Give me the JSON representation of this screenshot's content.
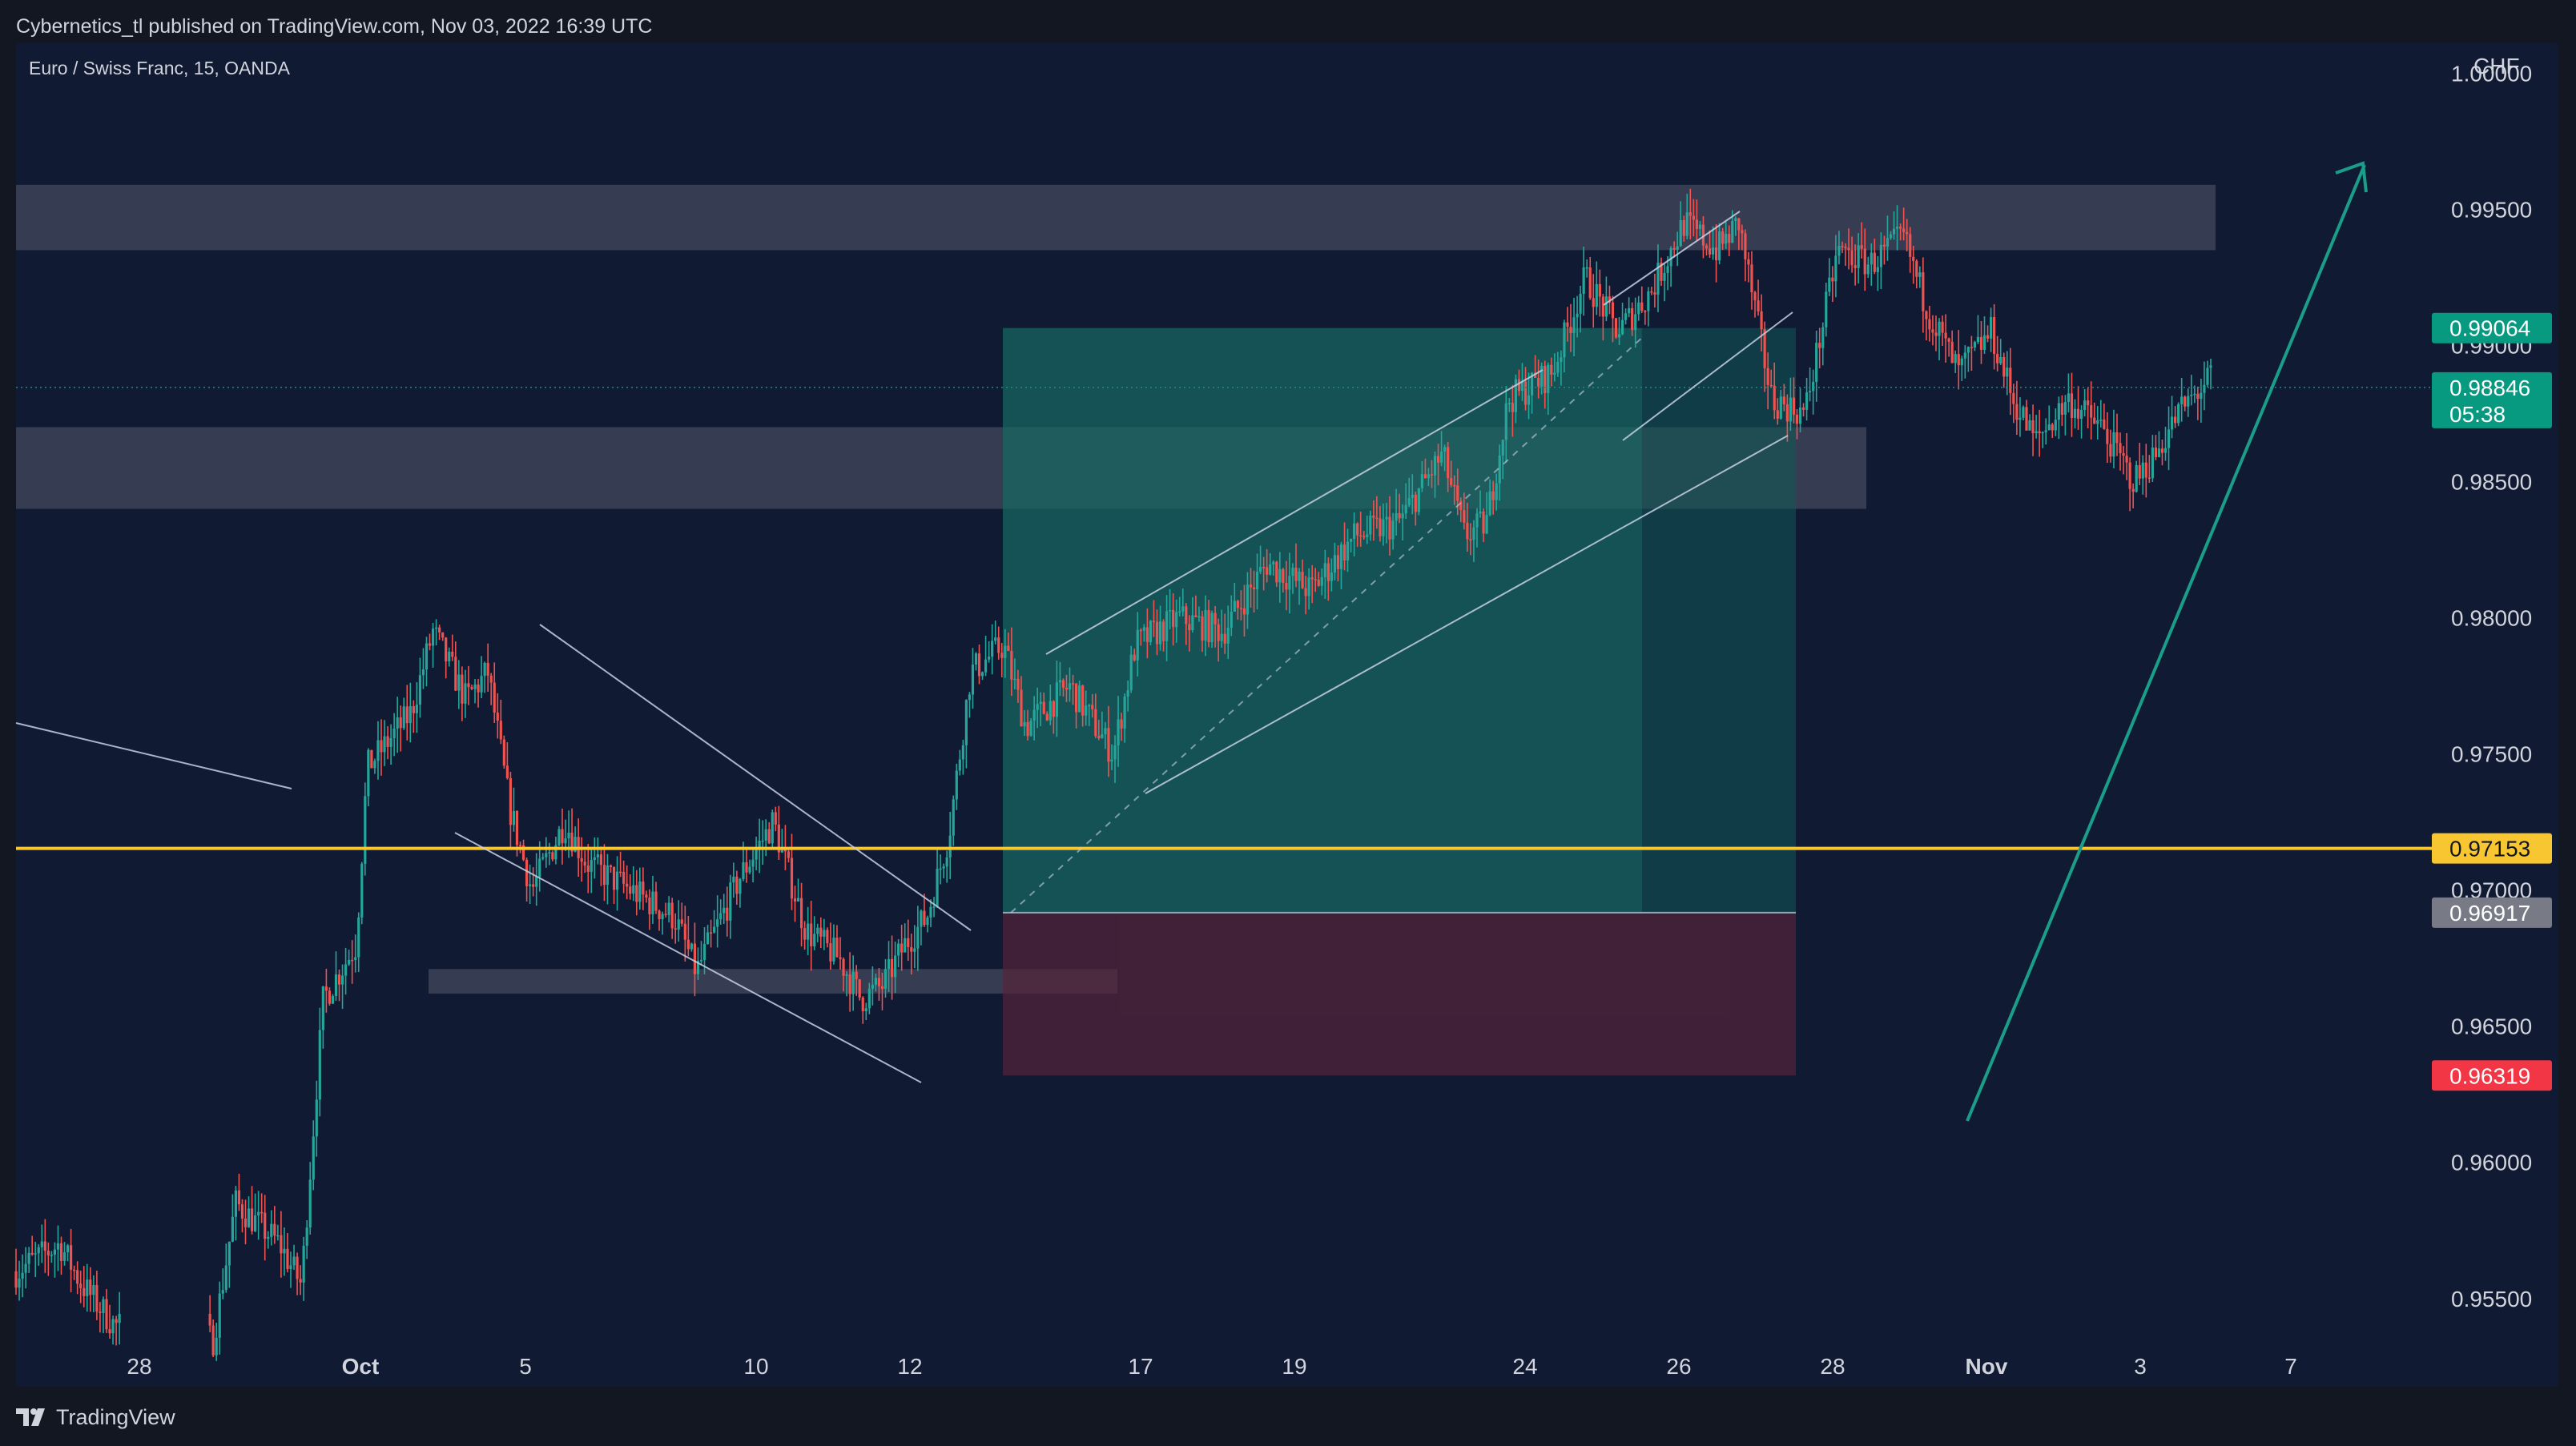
{
  "header": {
    "published_by": "Cybernetics_tl published on TradingView.com, Nov 03, 2022 16:39 UTC"
  },
  "symbol": {
    "title": "Euro / Swiss Franc, 15, OANDA"
  },
  "footer": {
    "brand": "TradingView"
  },
  "colors": {
    "background": "#101a33",
    "page": "#131722",
    "zone": "#434a5f",
    "target_zone": "#0f5a55",
    "stop_zone": "#55243a",
    "level_line": "#f7c630",
    "trend_line": "#c7d0e6",
    "arrow": "#1a9e8a",
    "candle_up": "#26a69a",
    "candle_down": "#ef5350",
    "tag_current": "#089981",
    "tag_level": "#f7c630",
    "tag_entry": "#787b86",
    "tag_stop": "#f23645"
  },
  "chart_data": {
    "type": "candlestick",
    "symbol": "EURCHF",
    "timeframe": "15",
    "currency": "CHF",
    "ylim": [
      0.9527,
      1.0011
    ],
    "x_ticks": [
      {
        "label": "28",
        "bold": false
      },
      {
        "label": "Oct",
        "bold": true
      },
      {
        "label": "5",
        "bold": false
      },
      {
        "label": "10",
        "bold": false
      },
      {
        "label": "12",
        "bold": false
      },
      {
        "label": "17",
        "bold": false
      },
      {
        "label": "19",
        "bold": false
      },
      {
        "label": "24",
        "bold": false
      },
      {
        "label": "26",
        "bold": false
      },
      {
        "label": "28",
        "bold": false
      },
      {
        "label": "Nov",
        "bold": true
      },
      {
        "label": "3",
        "bold": false
      },
      {
        "label": "7",
        "bold": false
      }
    ],
    "y_ticks": [
      "1.00000",
      "0.99500",
      "0.99000",
      "0.98500",
      "0.98000",
      "0.97500",
      "0.97000",
      "0.96500",
      "0.96000",
      "0.95500"
    ],
    "price_tags": [
      {
        "value": "0.99064",
        "kind": "target"
      },
      {
        "value": "0.98846",
        "kind": "current",
        "countdown": "05:38"
      },
      {
        "value": "0.97153",
        "kind": "level"
      },
      {
        "value": "0.96917",
        "kind": "entry"
      },
      {
        "value": "0.96319",
        "kind": "stop"
      }
    ],
    "current_price": 0.98846,
    "horizontal_level": 0.97153,
    "zones": [
      {
        "name": "supply-zone",
        "from": 0.9935,
        "to": 0.9959
      },
      {
        "name": "mid-zone",
        "from": 0.984,
        "to": 0.987
      },
      {
        "name": "demand-zone",
        "from": 0.9662,
        "to": 0.9671
      }
    ],
    "position": {
      "side": "long",
      "entry": 0.96917,
      "target": 0.99064,
      "stop": 0.96319
    },
    "path": [
      [
        0,
        0.956
      ],
      [
        0.02,
        0.957
      ],
      [
        0.03,
        0.9555
      ],
      [
        0.045,
        0.954
      ],
      [
        0.09,
        0.9535
      ],
      [
        0.1,
        0.9585
      ],
      [
        0.12,
        0.957
      ],
      [
        0.13,
        0.9555
      ],
      [
        0.14,
        0.966
      ],
      [
        0.155,
        0.968
      ],
      [
        0.16,
        0.9745
      ],
      [
        0.18,
        0.9765
      ],
      [
        0.19,
        0.9795
      ],
      [
        0.205,
        0.977
      ],
      [
        0.215,
        0.978
      ],
      [
        0.225,
        0.973
      ],
      [
        0.235,
        0.97
      ],
      [
        0.25,
        0.9725
      ],
      [
        0.26,
        0.971
      ],
      [
        0.28,
        0.97
      ],
      [
        0.3,
        0.969
      ],
      [
        0.31,
        0.967
      ],
      [
        0.33,
        0.9705
      ],
      [
        0.345,
        0.9725
      ],
      [
        0.36,
        0.9685
      ],
      [
        0.375,
        0.9675
      ],
      [
        0.385,
        0.966
      ],
      [
        0.395,
        0.9665
      ],
      [
        0.405,
        0.968
      ],
      [
        0.415,
        0.969
      ],
      [
        0.425,
        0.972
      ],
      [
        0.435,
        0.978
      ],
      [
        0.45,
        0.979
      ],
      [
        0.46,
        0.976
      ],
      [
        0.48,
        0.9775
      ],
      [
        0.5,
        0.975
      ],
      [
        0.51,
        0.979
      ],
      [
        0.53,
        0.98
      ],
      [
        0.55,
        0.9795
      ],
      [
        0.57,
        0.982
      ],
      [
        0.59,
        0.981
      ],
      [
        0.61,
        0.983
      ],
      [
        0.63,
        0.9835
      ],
      [
        0.65,
        0.986
      ],
      [
        0.66,
        0.983
      ],
      [
        0.67,
        0.9835
      ],
      [
        0.68,
        0.988
      ],
      [
        0.7,
        0.989
      ],
      [
        0.715,
        0.9925
      ],
      [
        0.73,
        0.9905
      ],
      [
        0.745,
        0.992
      ],
      [
        0.76,
        0.9945
      ],
      [
        0.775,
        0.9935
      ],
      [
        0.785,
        0.9945
      ],
      [
        0.8,
        0.988
      ],
      [
        0.815,
        0.9875
      ],
      [
        0.83,
        0.9935
      ],
      [
        0.845,
        0.993
      ],
      [
        0.86,
        0.994
      ],
      [
        0.87,
        0.9915
      ],
      [
        0.885,
        0.989
      ],
      [
        0.9,
        0.9905
      ],
      [
        0.91,
        0.988
      ],
      [
        0.92,
        0.9865
      ],
      [
        0.935,
        0.988
      ],
      [
        0.95,
        0.987
      ],
      [
        0.965,
        0.985
      ],
      [
        0.975,
        0.986
      ],
      [
        0.985,
        0.9875
      ],
      [
        1.0,
        0.9888
      ]
    ]
  }
}
